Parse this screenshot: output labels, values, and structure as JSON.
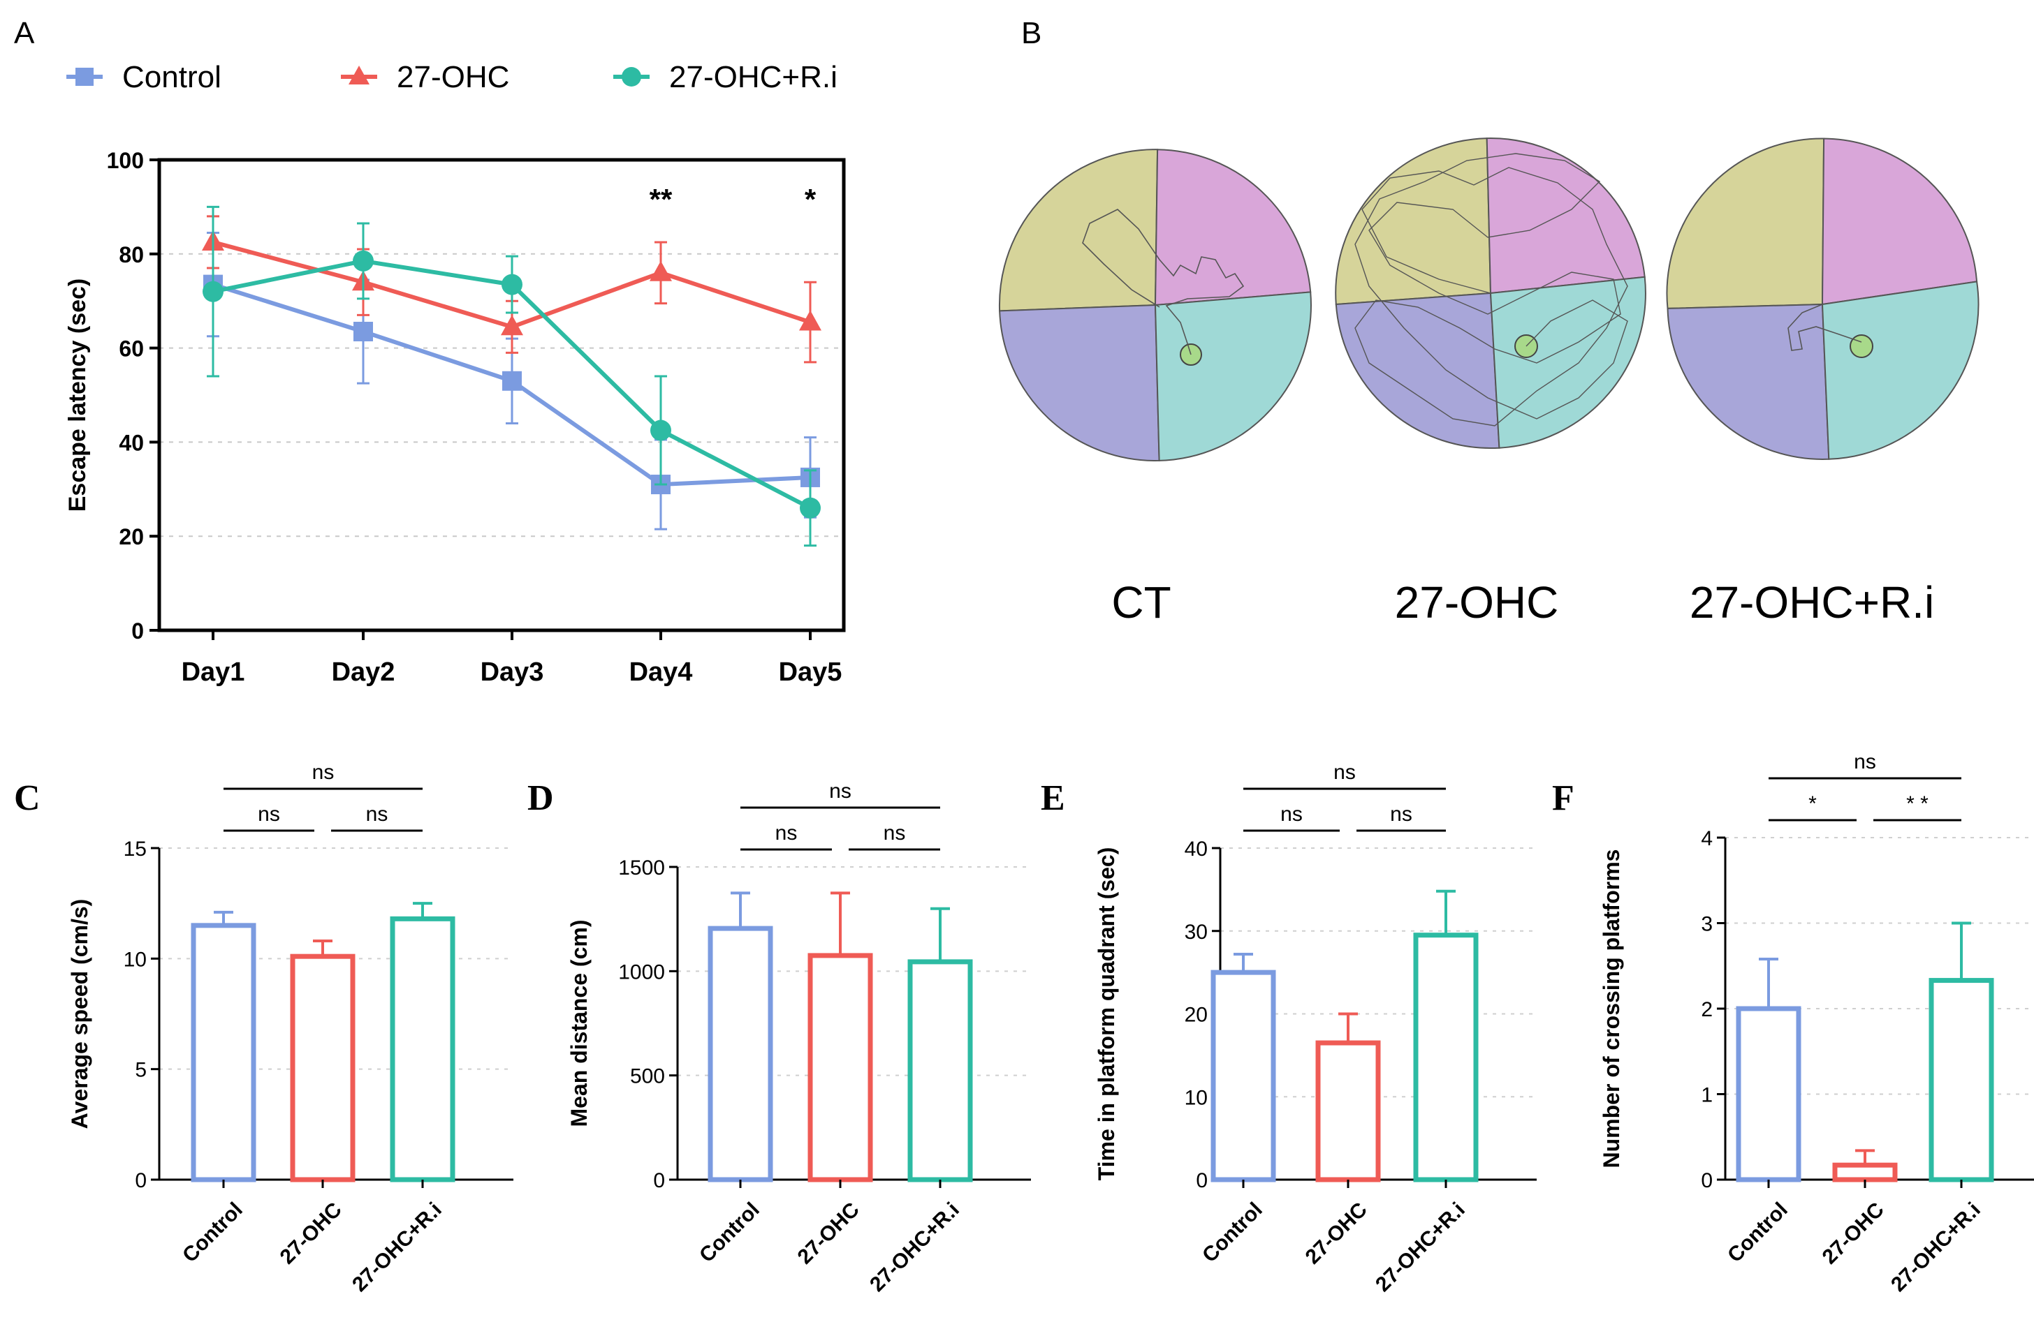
{
  "colors": {
    "control": "#7b9be0",
    "ohc": "#ef5b55",
    "ri": "#2dbba3",
    "quad_yellow": "#d6d49a",
    "quad_pink": "#d9a6d9",
    "quad_purple": "#a8a6d9",
    "quad_teal": "#9fd9d6",
    "platform": "#a8d98a"
  },
  "panel_labels": {
    "a": "A",
    "b": "B",
    "c": "C",
    "d": "D",
    "e": "E",
    "f": "F"
  },
  "chart_data": [
    {
      "panel": "A",
      "type": "line",
      "title": "",
      "xlabel": "",
      "ylabel": "Escape latency (sec)",
      "ylim": [
        0,
        100
      ],
      "yticks": [
        0,
        20,
        40,
        60,
        80,
        100
      ],
      "categories": [
        "Day1",
        "Day2",
        "Day3",
        "Day4",
        "Day5"
      ],
      "series": [
        {
          "name": "Control",
          "marker": "square",
          "values": [
            73.5,
            63.5,
            53,
            31,
            32.5
          ],
          "errors": [
            11,
            11,
            9,
            9.5,
            8.5
          ]
        },
        {
          "name": "27-OHC",
          "marker": "triangle",
          "values": [
            82.5,
            74,
            64.5,
            76,
            65.5
          ],
          "errors": [
            5.5,
            7,
            5.5,
            6.5,
            8.5
          ]
        },
        {
          "name": "27-OHC+R.i",
          "marker": "circle",
          "values": [
            72,
            78.5,
            73.5,
            42.5,
            26
          ],
          "errors": [
            18,
            8,
            6,
            11.5,
            8
          ]
        }
      ],
      "annotations": [
        {
          "category": "Day4",
          "text": "**"
        },
        {
          "category": "Day5",
          "text": "*"
        }
      ],
      "legend": "top"
    },
    {
      "panel": "C",
      "type": "bar",
      "ylabel": "Average speed (cm/s)",
      "ylim": [
        0,
        15
      ],
      "yticks": [
        0,
        5,
        10,
        15
      ],
      "categories": [
        "Control",
        "27-OHC",
        "27-OHC+R.i"
      ],
      "values": [
        11.5,
        10.1,
        11.8
      ],
      "errors": [
        0.6,
        0.7,
        0.7
      ],
      "comparisons": [
        {
          "from": 0,
          "to": 1,
          "text": "ns",
          "level": 1
        },
        {
          "from": 1,
          "to": 2,
          "text": "ns",
          "level": 1
        },
        {
          "from": 0,
          "to": 2,
          "text": "ns",
          "level": 2
        }
      ]
    },
    {
      "panel": "D",
      "type": "bar",
      "ylabel": "Mean distance (cm)",
      "ylim": [
        0,
        1500
      ],
      "yticks": [
        0,
        500,
        1000,
        1500
      ],
      "categories": [
        "Control",
        "27-OHC",
        "27-OHC+R.i"
      ],
      "values": [
        1205,
        1075,
        1045
      ],
      "errors": [
        170,
        300,
        255
      ],
      "comparisons": [
        {
          "from": 0,
          "to": 1,
          "text": "ns",
          "level": 1
        },
        {
          "from": 1,
          "to": 2,
          "text": "ns",
          "level": 1
        },
        {
          "from": 0,
          "to": 2,
          "text": "ns",
          "level": 2
        }
      ]
    },
    {
      "panel": "E",
      "type": "bar",
      "ylabel": "Time in platform quadrant (sec)",
      "ylim": [
        0,
        40
      ],
      "yticks": [
        0,
        10,
        20,
        30,
        40
      ],
      "categories": [
        "Control",
        "27-OHC",
        "27-OHC+R.i"
      ],
      "values": [
        25,
        16.5,
        29.5
      ],
      "errors": [
        2.2,
        3.5,
        5.3
      ],
      "comparisons": [
        {
          "from": 0,
          "to": 1,
          "text": "ns",
          "level": 1
        },
        {
          "from": 1,
          "to": 2,
          "text": "ns",
          "level": 1
        },
        {
          "from": 0,
          "to": 2,
          "text": "ns",
          "level": 2
        }
      ]
    },
    {
      "panel": "F",
      "type": "bar",
      "ylabel": "Number of crossing platforms",
      "ylim": [
        0,
        4
      ],
      "yticks": [
        0,
        1,
        2,
        3,
        4
      ],
      "categories": [
        "Control",
        "27-OHC",
        "27-OHC+R.i"
      ],
      "values": [
        2,
        0.17,
        2.33
      ],
      "errors": [
        0.58,
        0.17,
        0.67
      ],
      "comparisons": [
        {
          "from": 0,
          "to": 1,
          "text": "*",
          "level": 1
        },
        {
          "from": 1,
          "to": 2,
          "text": "* *",
          "level": 1
        },
        {
          "from": 0,
          "to": 2,
          "text": "ns",
          "level": 2
        }
      ]
    }
  ],
  "trajectories": {
    "labels": [
      "CT",
      "27-OHC",
      "27-OHC+R.i"
    ]
  }
}
